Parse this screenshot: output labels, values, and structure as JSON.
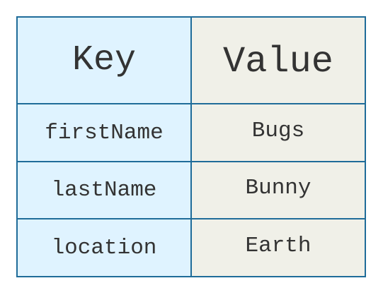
{
  "table": {
    "header": {
      "key": "Key",
      "value": "Value"
    },
    "rows": [
      {
        "key": "firstName",
        "value": "Bugs"
      },
      {
        "key": "lastName",
        "value": "Bunny"
      },
      {
        "key": "location",
        "value": "Earth"
      }
    ]
  },
  "colors": {
    "border": "#1f6c99",
    "key_bg": "#dff3ff",
    "value_bg": "#f0f0e8",
    "text": "#333333"
  }
}
